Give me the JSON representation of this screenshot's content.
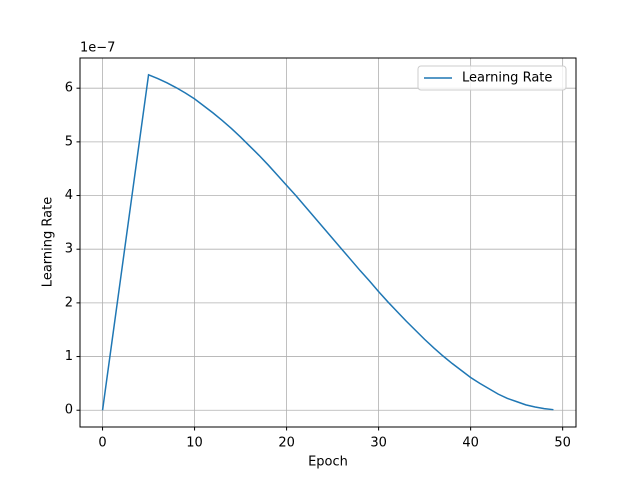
{
  "chart_data": {
    "type": "line",
    "x_label": "Epoch",
    "y_label": "Learning Rate",
    "y_offset_label": "1e−7",
    "x": [
      0,
      1,
      2,
      3,
      4,
      5,
      6,
      7,
      8,
      9,
      10,
      11,
      12,
      13,
      14,
      15,
      16,
      17,
      18,
      19,
      20,
      21,
      22,
      23,
      24,
      25,
      26,
      27,
      28,
      29,
      30,
      31,
      32,
      33,
      34,
      35,
      36,
      37,
      38,
      39,
      40,
      41,
      42,
      43,
      44,
      45,
      46,
      47,
      48,
      49
    ],
    "series": [
      {
        "name": "Learning Rate",
        "color": "#1f77b4",
        "values": [
          0,
          1.25,
          2.5,
          3.75,
          5.0,
          6.25,
          6.18,
          6.1,
          6.01,
          5.91,
          5.8,
          5.67,
          5.54,
          5.4,
          5.25,
          5.09,
          4.92,
          4.75,
          4.57,
          4.38,
          4.19,
          4.0,
          3.8,
          3.6,
          3.4,
          3.2,
          3.0,
          2.8,
          2.6,
          2.41,
          2.21,
          2.02,
          1.84,
          1.66,
          1.49,
          1.32,
          1.16,
          1.01,
          0.87,
          0.74,
          0.61,
          0.5,
          0.4,
          0.3,
          0.22,
          0.16,
          0.1,
          0.06,
          0.03,
          0.01
        ]
      }
    ],
    "xlim": [
      -2.45,
      51.45
    ],
    "xticks": [
      0,
      10,
      20,
      30,
      40,
      50
    ],
    "ylim": [
      -0.3125,
      6.5625
    ],
    "yticks": [
      0,
      1,
      2,
      3,
      4,
      5,
      6
    ],
    "grid": true,
    "legend": "upper right"
  }
}
